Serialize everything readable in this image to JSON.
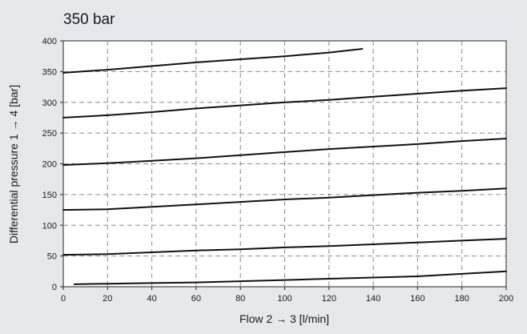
{
  "chart_data": {
    "type": "line",
    "title": "350 bar",
    "xlabel": "Flow 2 → 3 [l/min]",
    "ylabel": "Differential pressure 1 → 4 [bar]",
    "xlim": [
      0,
      200
    ],
    "ylim": [
      0,
      400
    ],
    "xticks": [
      0,
      20,
      40,
      60,
      80,
      100,
      120,
      140,
      160,
      180,
      200
    ],
    "yticks": [
      0,
      50,
      100,
      150,
      200,
      250,
      300,
      350,
      400
    ],
    "grid": true,
    "colors": {
      "line": "#111111",
      "grid": "#8c8c8c",
      "plot_bg": "#ffffff",
      "page_bg": "#e6e8ec"
    },
    "series": [
      {
        "x": [
          5,
          20,
          40,
          60,
          80,
          100,
          120,
          140,
          160,
          180,
          200
        ],
        "y": [
          4,
          5,
          6,
          7,
          9,
          11,
          13,
          15,
          17,
          21,
          25
        ]
      },
      {
        "x": [
          0,
          20,
          40,
          60,
          80,
          100,
          120,
          140,
          160,
          180,
          200
        ],
        "y": [
          52,
          53,
          56,
          59,
          61,
          64,
          66,
          69,
          72,
          75,
          78
        ]
      },
      {
        "x": [
          0,
          20,
          40,
          60,
          80,
          100,
          120,
          140,
          160,
          180,
          200
        ],
        "y": [
          125,
          126,
          130,
          134,
          138,
          142,
          145,
          149,
          153,
          156,
          160
        ]
      },
      {
        "x": [
          0,
          20,
          40,
          60,
          80,
          100,
          120,
          140,
          160,
          180,
          200
        ],
        "y": [
          198,
          201,
          205,
          209,
          214,
          219,
          224,
          228,
          232,
          237,
          241
        ]
      },
      {
        "x": [
          0,
          20,
          40,
          60,
          80,
          100,
          120,
          140,
          160,
          180,
          200
        ],
        "y": [
          275,
          279,
          284,
          290,
          295,
          300,
          304,
          309,
          314,
          319,
          323
        ]
      },
      {
        "x": [
          0,
          20,
          40,
          60,
          80,
          100,
          120,
          135
        ],
        "y": [
          348,
          353,
          359,
          365,
          370,
          375,
          381,
          387
        ]
      }
    ]
  }
}
